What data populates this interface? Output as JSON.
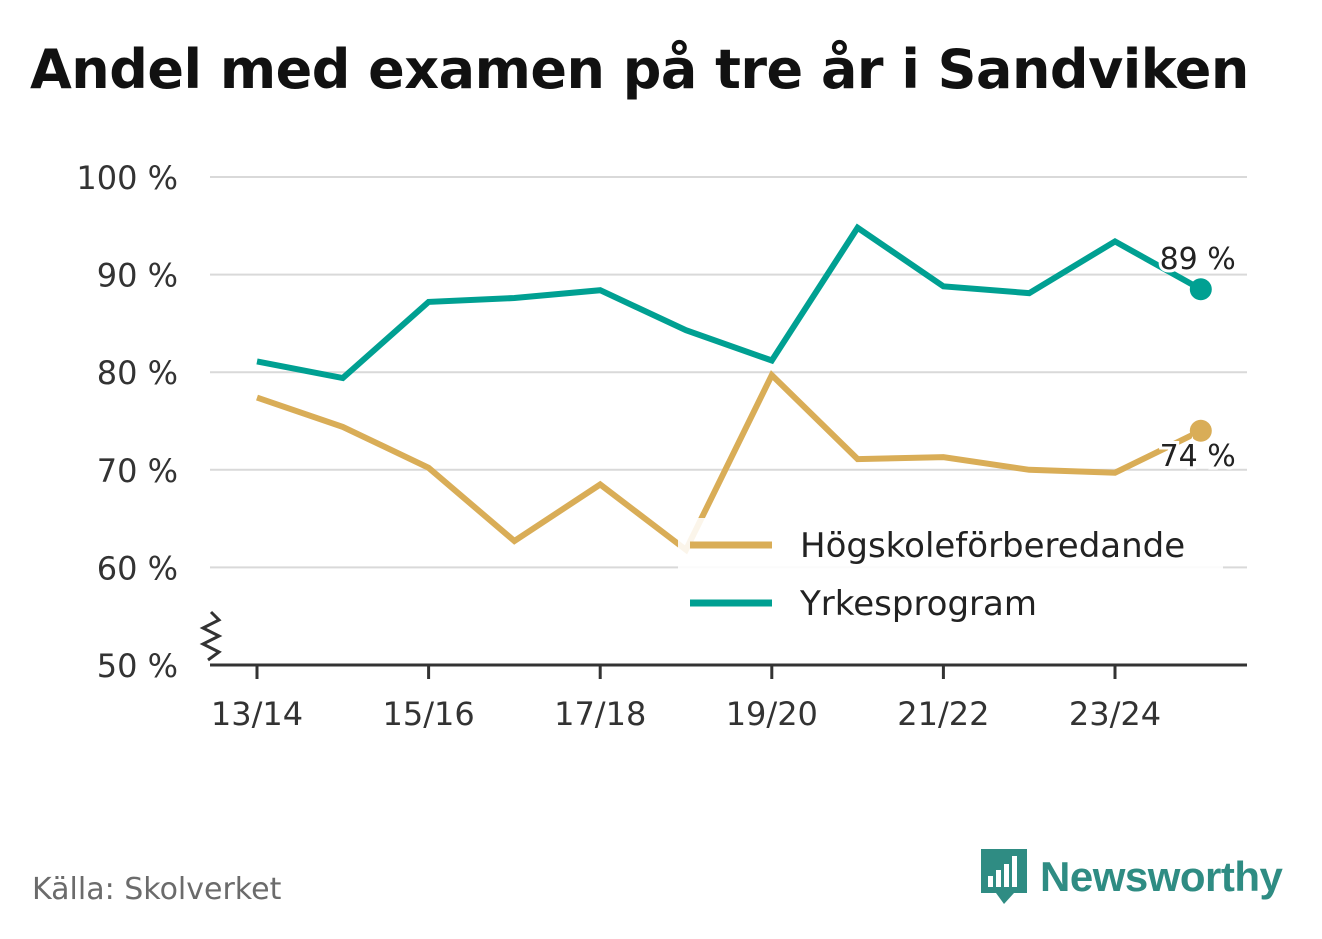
{
  "title": "Andel med examen på tre år i Sandviken",
  "source": "Källa: Skolverket",
  "brand": {
    "name": "Newsworthy",
    "icon": "newsworthy-logo-icon"
  },
  "colors": {
    "hogskole": "#d9ad57",
    "yrke": "#00a092",
    "grid": "#d9d9d9",
    "axis": "#333333",
    "text": "#333333",
    "brand": "#2f8c83"
  },
  "chart_data": {
    "type": "line",
    "title": "Andel med examen på tre år i Sandviken",
    "x": [
      "13/14",
      "14/15",
      "15/16",
      "16/17",
      "17/18",
      "18/19",
      "19/20",
      "20/21",
      "21/22",
      "22/23",
      "23/24",
      "24/25"
    ],
    "tick_labels_x": [
      "13/14",
      "15/16",
      "17/18",
      "19/20",
      "21/22",
      "23/24"
    ],
    "tick_labels_y": [
      "100 %",
      "90 %",
      "80 %",
      "70 %",
      "60 %",
      "50 %"
    ],
    "yticks": [
      100,
      90,
      80,
      70,
      60,
      50
    ],
    "ylim": [
      50,
      100
    ],
    "y_axis_break": true,
    "grid": true,
    "legend_position": "bottom-right",
    "series": [
      {
        "name": "Högskoleförberedande",
        "color": "#d9ad57",
        "values": [
          77.4,
          74.4,
          70.2,
          62.7,
          68.5,
          61.8,
          79.7,
          71.1,
          71.3,
          70.0,
          69.7,
          74.0
        ],
        "end_label": "74 %"
      },
      {
        "name": "Yrkesprogram",
        "color": "#00a092",
        "values": [
          81.1,
          79.4,
          87.2,
          87.6,
          88.4,
          84.3,
          81.2,
          94.8,
          88.8,
          88.1,
          93.4,
          88.5
        ],
        "end_label": "89 %"
      }
    ]
  }
}
